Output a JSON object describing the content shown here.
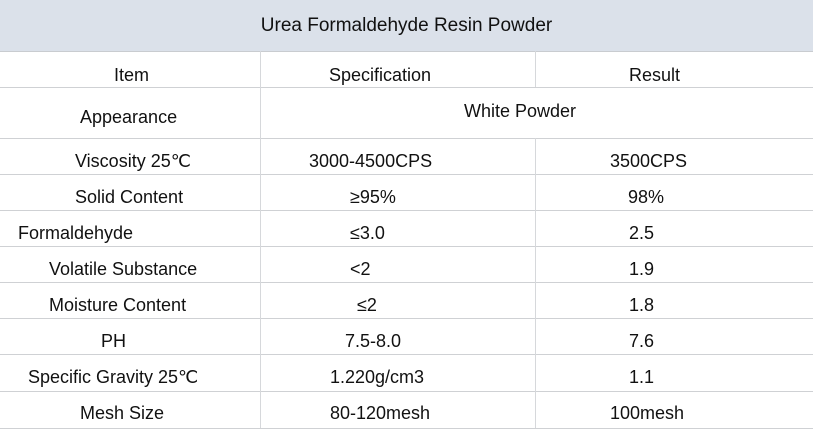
{
  "table": {
    "title": "Urea Formaldehyde Resin Powder",
    "headers": [
      "Item",
      "Specification",
      "Result"
    ],
    "appearance": {
      "item": "Appearance",
      "value": "White Powder"
    },
    "rows": [
      {
        "item": "Viscosity 25℃",
        "spec": "3000-4500CPS",
        "result": "3500CPS"
      },
      {
        "item": "Solid Content",
        "spec": "≥95%",
        "result": "98%"
      },
      {
        "item": "Formaldehyde",
        "spec": "≤3.0",
        "result": "2.5"
      },
      {
        "item": "Volatile Substance",
        "spec": "<2",
        "result": "1.9"
      },
      {
        "item": "Moisture Content",
        "spec": "≤2",
        "result": "1.8"
      },
      {
        "item": "PH",
        "spec": "7.5-8.0",
        "result": "7.6"
      },
      {
        "item": "Specific Gravity 25℃",
        "spec": "1.220g/cm3",
        "result": "1.1"
      },
      {
        "item": "Mesh Size",
        "spec": "80-120mesh",
        "result": "100mesh"
      }
    ]
  }
}
